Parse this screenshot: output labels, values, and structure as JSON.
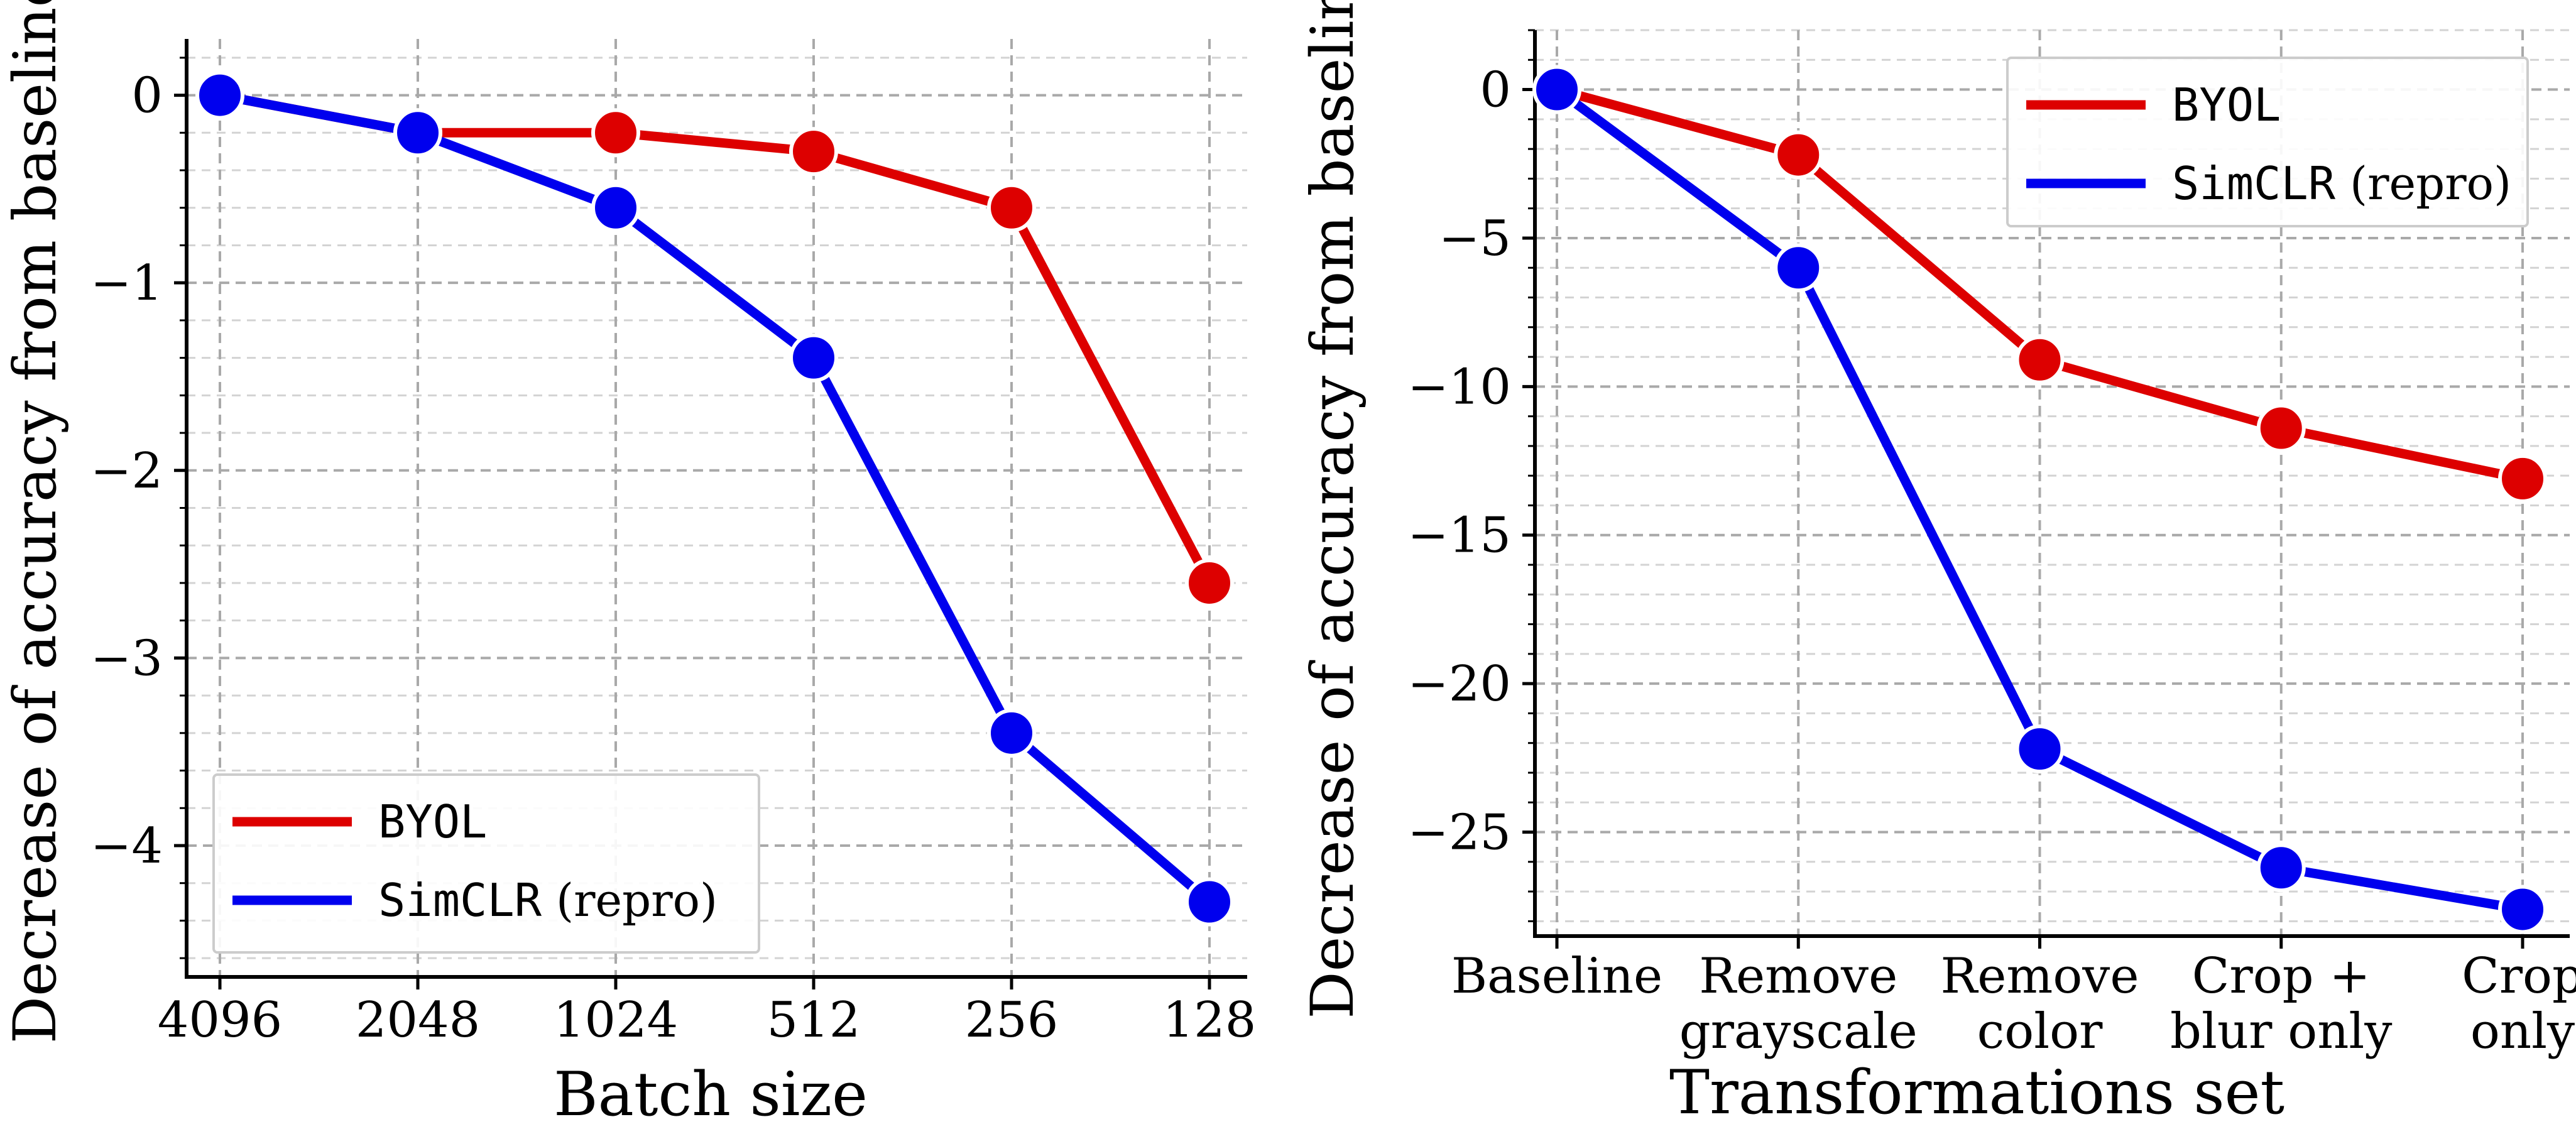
{
  "chart_data": [
    {
      "type": "line",
      "title": "",
      "xlabel": "Batch size",
      "ylabel": "Decrease of accuracy from baseline",
      "categories": [
        "4096",
        "2048",
        "1024",
        "512",
        "256",
        "128"
      ],
      "ylim": [
        -4.7,
        0.3
      ],
      "yticks": [
        0,
        -1,
        -2,
        -3,
        -4
      ],
      "ytick_labels": [
        "0",
        "−1",
        "−2",
        "−3",
        "−4"
      ],
      "grid": true,
      "legend_position": "bottom-left",
      "series": [
        {
          "name": "BYOL",
          "mono_part": "BYOL",
          "suffix": "",
          "color": "#dd0000",
          "values": [
            0,
            -0.2,
            -0.2,
            -0.3,
            -0.6,
            -2.6
          ]
        },
        {
          "name": "SimCLR (repro)",
          "mono_part": "SimCLR",
          "suffix": " (repro)",
          "color": "#0000ee",
          "values": [
            0,
            -0.2,
            -0.6,
            -1.4,
            -3.4,
            -4.3
          ]
        }
      ]
    },
    {
      "type": "line",
      "title": "",
      "xlabel": "Transformations set",
      "ylabel": "Decrease of accuracy from baseline",
      "categories": [
        "Baseline",
        "Remove grayscale",
        "Remove color",
        "Crop + blur only",
        "Crop only"
      ],
      "category_lines": [
        [
          "Baseline"
        ],
        [
          "Remove",
          "grayscale"
        ],
        [
          "Remove",
          "color"
        ],
        [
          "Crop +",
          "blur only"
        ],
        [
          "Crop",
          "only"
        ]
      ],
      "ylim": [
        -28.5,
        2
      ],
      "yticks": [
        0,
        -5,
        -10,
        -15,
        -20,
        -25
      ],
      "ytick_labels": [
        "0",
        "−5",
        "−10",
        "−15",
        "−20",
        "−25"
      ],
      "grid": true,
      "legend_position": "top-right",
      "series": [
        {
          "name": "BYOL",
          "mono_part": "BYOL",
          "suffix": "",
          "color": "#dd0000",
          "values": [
            0,
            -2.2,
            -9.1,
            -11.4,
            -13.1
          ]
        },
        {
          "name": "SimCLR (repro)",
          "mono_part": "SimCLR",
          "suffix": " (repro)",
          "color": "#0000ee",
          "values": [
            0,
            -6.0,
            -22.2,
            -26.2,
            -27.6
          ]
        }
      ]
    }
  ]
}
